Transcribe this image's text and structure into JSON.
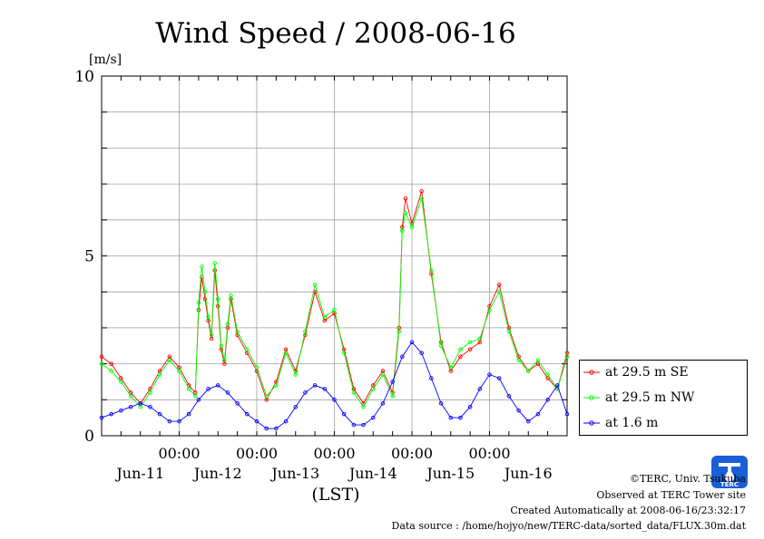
{
  "chart_data": {
    "type": "line",
    "title": "Wind Speed / 2008-06-16",
    "ylabel": "[m/s]",
    "xlabel": "(LST)",
    "ylim": [
      0,
      10
    ],
    "yticks": [
      0,
      5,
      10
    ],
    "xlim": [
      0,
      144
    ],
    "day_labels": [
      "Jun-11",
      "Jun-12",
      "Jun-13",
      "Jun-14",
      "Jun-15",
      "Jun-16"
    ],
    "time_labels": [
      "00:00",
      "00:00",
      "00:00",
      "00:00",
      "00:00"
    ],
    "time_label_hours": [
      24,
      48,
      72,
      96,
      120
    ],
    "grid": true,
    "legend_position": "bottom-right",
    "series": [
      {
        "name": "at 29.5 m SE",
        "color": "#ff0000",
        "x": [
          0,
          3,
          6,
          9,
          12,
          15,
          18,
          21,
          24,
          27,
          29,
          30,
          31,
          32,
          33,
          34,
          35,
          36,
          37,
          38,
          39,
          40,
          42,
          45,
          48,
          51,
          54,
          57,
          60,
          63,
          66,
          69,
          72,
          75,
          78,
          81,
          84,
          87,
          90,
          92,
          93,
          94,
          96,
          99,
          102,
          105,
          108,
          111,
          114,
          117,
          120,
          123,
          126,
          129,
          132,
          135,
          138,
          141,
          144
        ],
        "y": [
          2.2,
          2.0,
          1.6,
          1.2,
          0.9,
          1.3,
          1.8,
          2.2,
          1.9,
          1.4,
          1.2,
          3.5,
          4.4,
          3.8,
          3.2,
          2.7,
          4.6,
          3.6,
          2.4,
          2.0,
          3.0,
          3.8,
          2.8,
          2.3,
          1.8,
          1.0,
          1.5,
          2.4,
          1.8,
          2.8,
          4.0,
          3.2,
          3.4,
          2.4,
          1.3,
          0.9,
          1.4,
          1.8,
          1.2,
          3.0,
          5.8,
          6.6,
          5.9,
          6.8,
          4.5,
          2.6,
          1.8,
          2.2,
          2.4,
          2.6,
          3.6,
          4.2,
          3.0,
          2.2,
          1.8,
          2.0,
          1.6,
          1.3,
          2.3
        ]
      },
      {
        "name": "at 29.5 m NW",
        "color": "#00ff00",
        "x": [
          0,
          3,
          6,
          9,
          12,
          15,
          18,
          21,
          24,
          27,
          29,
          30,
          31,
          32,
          33,
          34,
          35,
          36,
          37,
          38,
          39,
          40,
          42,
          45,
          48,
          51,
          54,
          57,
          60,
          63,
          66,
          69,
          72,
          75,
          78,
          81,
          84,
          87,
          90,
          92,
          93,
          94,
          96,
          99,
          102,
          105,
          108,
          111,
          114,
          117,
          120,
          123,
          126,
          129,
          132,
          135,
          138,
          141,
          144
        ],
        "y": [
          2.0,
          1.8,
          1.5,
          1.1,
          0.8,
          1.2,
          1.7,
          2.1,
          1.8,
          1.3,
          1.1,
          3.7,
          4.7,
          4.0,
          3.3,
          2.8,
          4.8,
          3.8,
          2.5,
          2.1,
          3.1,
          3.9,
          2.9,
          2.4,
          1.9,
          1.1,
          1.4,
          2.3,
          1.7,
          2.9,
          4.2,
          3.3,
          3.5,
          2.3,
          1.2,
          0.8,
          1.3,
          1.7,
          1.1,
          2.9,
          5.7,
          6.2,
          5.8,
          6.6,
          4.6,
          2.5,
          1.9,
          2.4,
          2.6,
          2.7,
          3.5,
          4.0,
          2.9,
          2.1,
          1.8,
          2.1,
          1.7,
          1.3,
          2.2
        ]
      },
      {
        "name": "at 1.6 m",
        "color": "#0000ff",
        "x": [
          0,
          3,
          6,
          9,
          12,
          15,
          18,
          21,
          24,
          27,
          30,
          33,
          36,
          39,
          42,
          45,
          48,
          51,
          54,
          57,
          60,
          63,
          66,
          69,
          72,
          75,
          78,
          81,
          84,
          87,
          90,
          93,
          96,
          99,
          102,
          105,
          108,
          111,
          114,
          117,
          120,
          123,
          126,
          129,
          132,
          135,
          138,
          141,
          144
        ],
        "y": [
          0.5,
          0.6,
          0.7,
          0.8,
          0.9,
          0.8,
          0.6,
          0.4,
          0.4,
          0.6,
          1.0,
          1.3,
          1.4,
          1.2,
          0.9,
          0.6,
          0.4,
          0.2,
          0.2,
          0.4,
          0.8,
          1.2,
          1.4,
          1.3,
          1.0,
          0.6,
          0.3,
          0.3,
          0.5,
          0.9,
          1.5,
          2.2,
          2.6,
          2.3,
          1.6,
          0.9,
          0.5,
          0.5,
          0.8,
          1.3,
          1.7,
          1.6,
          1.1,
          0.7,
          0.4,
          0.6,
          1.0,
          1.4,
          0.6
        ]
      }
    ]
  },
  "credits": {
    "copyright": "©TERC, Univ. Tsukuba",
    "observed": "Observed at TERC Tower site",
    "created": "Created Automatically at 2008-06-16/23:32:17",
    "source": "Data source : /home/hojyo/new/TERC-data/sorted_data/FLUX.30m.dat"
  },
  "logo": {
    "text": "TERC",
    "color": "#1a5fd6"
  }
}
